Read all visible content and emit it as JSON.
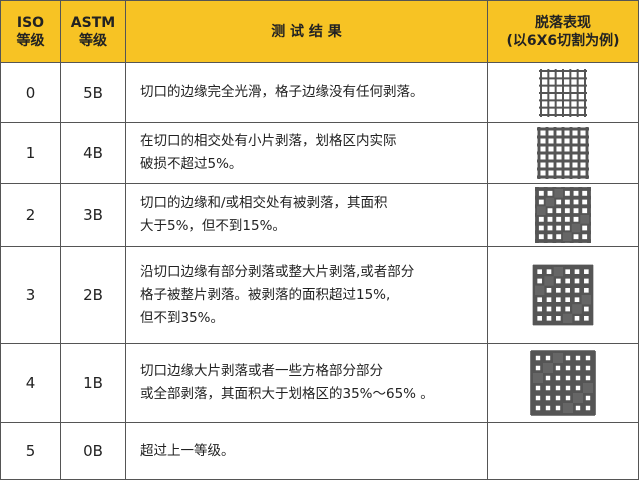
{
  "header": {
    "iso": [
      "ISO",
      "等级"
    ],
    "astm": [
      "ASTM",
      "等级"
    ],
    "result": "测 试 结 果",
    "appearance": [
      "脱落表现",
      "(以6X6切割为例)"
    ]
  },
  "rows": [
    {
      "iso": "0",
      "astm": "5B",
      "description": [
        "切口的边缘完全光滑，格子边缘没有任何剥落。"
      ]
    },
    {
      "iso": "1",
      "astm": "4B",
      "description": [
        "在切口的相交处有小片剥落，划格区内实际",
        "破损不超过5%。"
      ]
    },
    {
      "iso": "2",
      "astm": "3B",
      "description": [
        "切口的边缘和/或相交处有被剥落，其面积",
        "大于5%，但不到15%。"
      ]
    },
    {
      "iso": "3",
      "astm": "2B",
      "description": [
        "沿切口边缘有部分剥落或整大片剥落,或者部分",
        "格子被整片剥落。被剥落的面积超过15%,",
        "但不到35%。"
      ]
    },
    {
      "iso": "4",
      "astm": "1B",
      "description": [
        "切口边缘大片剥落或者一些方格部分部分",
        "或全部剥落，其面积大于划格区的35%～65% 。"
      ]
    },
    {
      "iso": "5",
      "astm": "0B",
      "description": [
        "超过上一等级。"
      ]
    }
  ]
}
